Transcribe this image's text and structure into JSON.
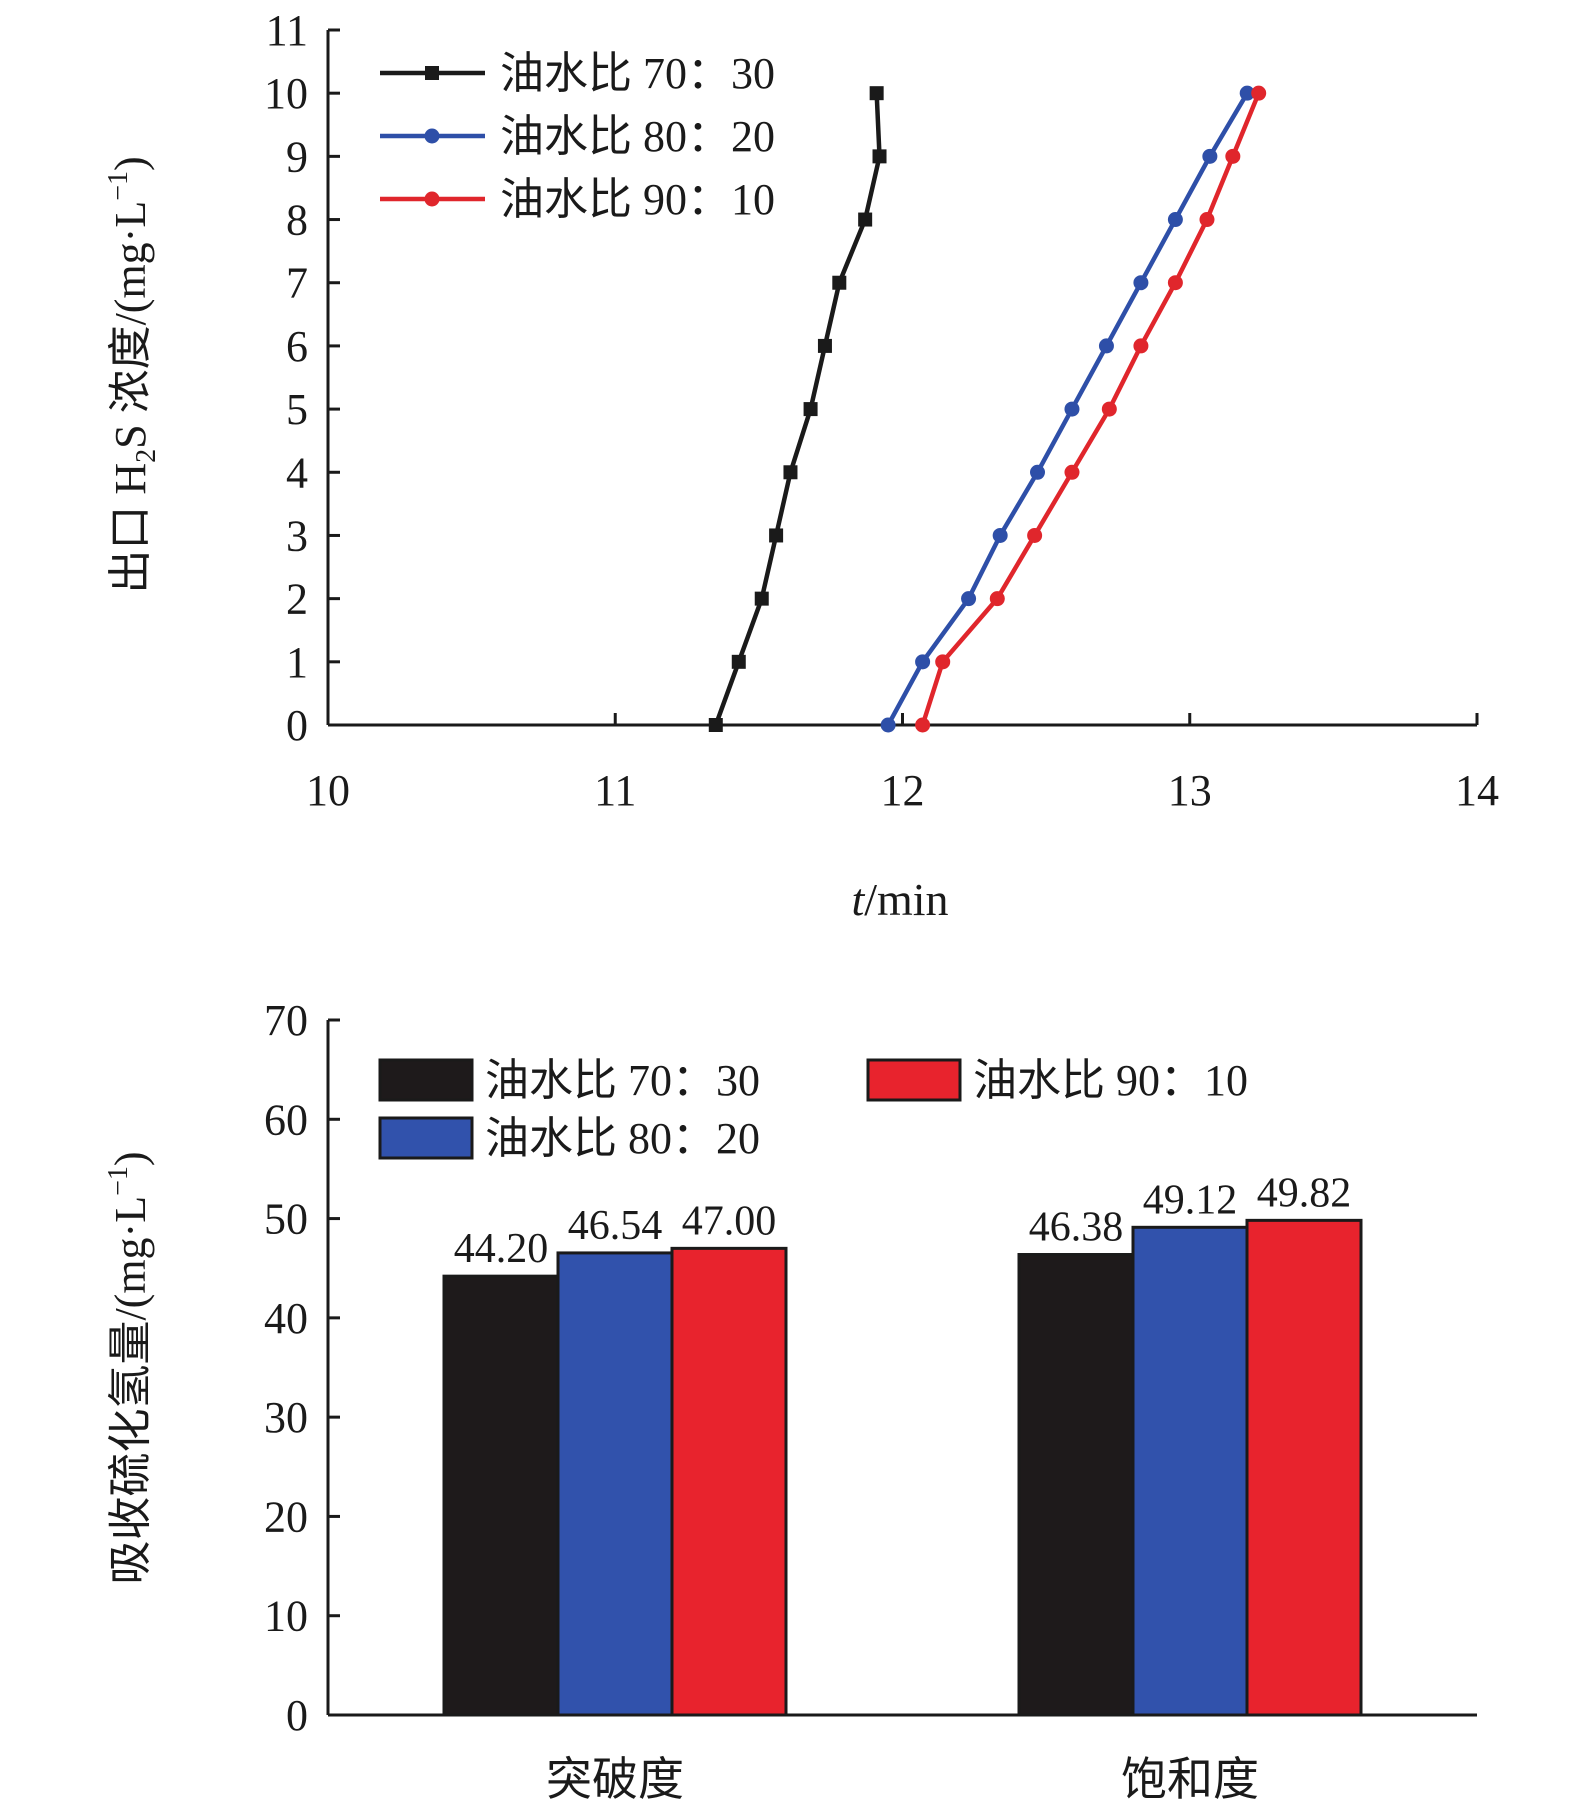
{
  "chart_data": [
    {
      "type": "line",
      "xlabel_italic": "t",
      "xlabel_rest": "/min",
      "ylabel_prefix": "出口 H",
      "ylabel_sub": "2",
      "ylabel_mid": "S 浓度/(mg·L",
      "ylabel_sup": "−1",
      "ylabel_suffix": ")",
      "xlim": [
        10,
        14
      ],
      "ylim": [
        0,
        11
      ],
      "xticks": [
        "10",
        "11",
        "12",
        "13",
        "14"
      ],
      "yticks": [
        "0",
        "1",
        "2",
        "3",
        "4",
        "5",
        "6",
        "7",
        "8",
        "9",
        "10",
        "11"
      ],
      "grid": false,
      "legend_position": "top-left",
      "series": [
        {
          "name": "油水比 70：30",
          "color": "#1a1a1a",
          "marker": "square",
          "points": [
            [
              11.35,
              0
            ],
            [
              11.43,
              1
            ],
            [
              11.51,
              2
            ],
            [
              11.56,
              3
            ],
            [
              11.61,
              4
            ],
            [
              11.68,
              5
            ],
            [
              11.73,
              6
            ],
            [
              11.78,
              7
            ],
            [
              11.87,
              8
            ],
            [
              11.92,
              9
            ],
            [
              11.91,
              10
            ]
          ]
        },
        {
          "name": "油水比 80：20",
          "color": "#2e4fa8",
          "marker": "circle",
          "points": [
            [
              11.95,
              0
            ],
            [
              12.07,
              1
            ],
            [
              12.23,
              2
            ],
            [
              12.34,
              3
            ],
            [
              12.47,
              4
            ],
            [
              12.59,
              5
            ],
            [
              12.71,
              6
            ],
            [
              12.83,
              7
            ],
            [
              12.95,
              8
            ],
            [
              13.07,
              9
            ],
            [
              13.2,
              10
            ]
          ]
        },
        {
          "name": "油水比 90：10",
          "color": "#e0262c",
          "marker": "circle",
          "points": [
            [
              12.07,
              0
            ],
            [
              12.14,
              1
            ],
            [
              12.33,
              2
            ],
            [
              12.46,
              3
            ],
            [
              12.59,
              4
            ],
            [
              12.72,
              5
            ],
            [
              12.83,
              6
            ],
            [
              12.95,
              7
            ],
            [
              13.06,
              8
            ],
            [
              13.15,
              9
            ],
            [
              13.24,
              10
            ]
          ]
        }
      ]
    },
    {
      "type": "bar",
      "categories": [
        "突破度",
        "饱和度"
      ],
      "ylabel_main": "吸收硫化氢量/(mg·L",
      "ylabel_sup": "−1",
      "ylabel_suffix": ")",
      "ylim": [
        0,
        70
      ],
      "yticks": [
        "0",
        "10",
        "20",
        "30",
        "40",
        "50",
        "60",
        "70"
      ],
      "grid": false,
      "legend_position": "top",
      "series": [
        {
          "name": "油水比 70：30",
          "color": "#1e1a1b",
          "values": [
            44.2,
            46.38
          ],
          "labels": [
            "44.20",
            "46.38"
          ]
        },
        {
          "name": "油水比 80：20",
          "color": "#3152ac",
          "values": [
            46.54,
            49.12
          ],
          "labels": [
            "46.54",
            "49.12"
          ]
        },
        {
          "name": "油水比 90：10",
          "color": "#e8232d",
          "values": [
            47.0,
            49.82
          ],
          "labels": [
            "47.00",
            "49.82"
          ]
        }
      ]
    }
  ]
}
